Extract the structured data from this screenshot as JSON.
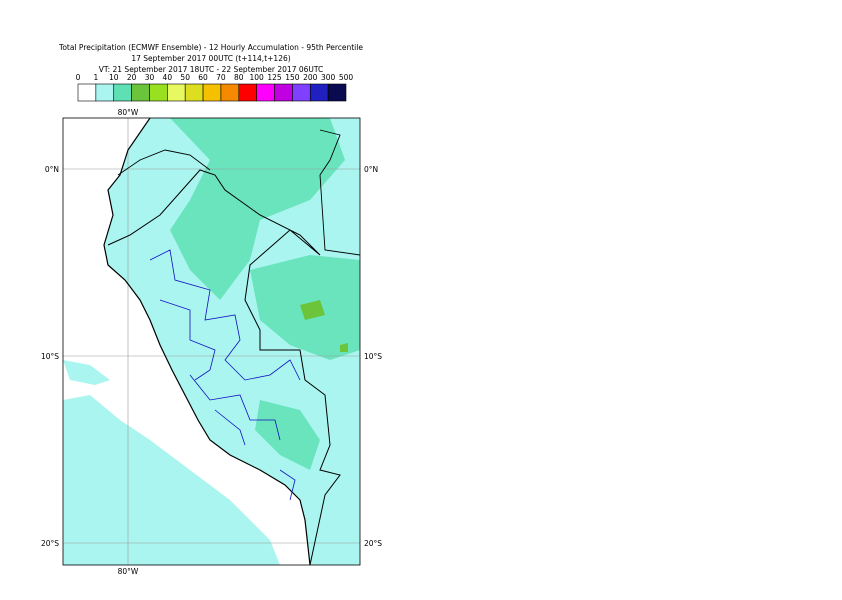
{
  "header": {
    "title_lines": [
      "Total Precipitation (ECMWF Ensemble) - 12 Hourly Accumulation - 95th Percentile",
      "17 September 2017 00UTC (t+114,t+126)",
      "VT: 21 September 2017 18UTC - 22 September 2017 06UTC"
    ]
  },
  "legend": {
    "labels": [
      "0",
      "1",
      "10",
      "20",
      "30",
      "40",
      "50",
      "60",
      "70",
      "80",
      "100",
      "125",
      "150",
      "200",
      "300",
      "500"
    ],
    "colors": [
      "#ffffff",
      "#aaf5f0",
      "#5fe0b4",
      "#6cc43a",
      "#98e020",
      "#e8f860",
      "#dede20",
      "#f5c000",
      "#f58a00",
      "#ff0000",
      "#ff00ff",
      "#c000e0",
      "#8040ff",
      "#2020c0",
      "#0a0a50"
    ]
  },
  "map": {
    "longitude_labels": [
      "80°W"
    ],
    "latitude_labels": [
      "0°N",
      "10°S",
      "20°S"
    ]
  }
}
